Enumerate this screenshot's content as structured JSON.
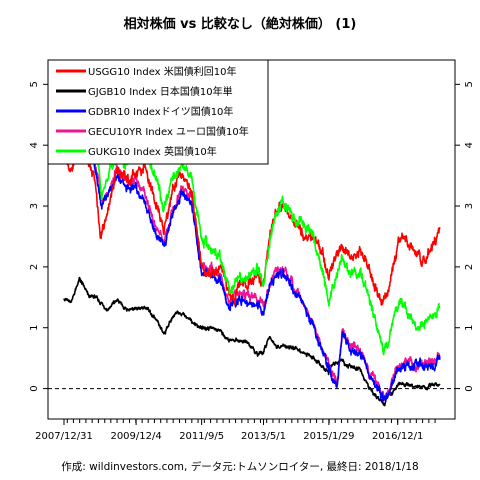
{
  "chart_data": {
    "type": "line",
    "title": "相対株価 vs 比較なし（絶対株価） (1)",
    "footer": "作成: wildinvestors.com, データ元:トムソンロイター, 最終日: 2018/1/18",
    "ylim": [
      -0.5,
      5.4
    ],
    "y_ticks": [
      0,
      1,
      2,
      3,
      4,
      5
    ],
    "y_tick_labels": [
      "0",
      "1",
      "2",
      "3",
      "4",
      "5"
    ],
    "x_tick_labels": [
      "2007/12/31",
      "2009/12/4",
      "2011/9/5",
      "2013/5/1",
      "2015/1/29",
      "2016/12/1"
    ],
    "x_tick_dates": [
      "2007-12-31",
      "2009-12-04",
      "2011-09-05",
      "2013-05-01",
      "2015-01-29",
      "2016-12-01"
    ],
    "x_start": "2007-12-31",
    "x_end": "2018-01-18",
    "reference_line": 0,
    "grid": false,
    "legend_position": "top-left",
    "series": [
      {
        "name": "USGG10 Index 米国債利回10年",
        "color": "#ff0000",
        "x": [
          "2007-12-31",
          "2008-03-01",
          "2008-06-01",
          "2008-09-01",
          "2008-11-01",
          "2008-12-20",
          "2009-03-01",
          "2009-06-01",
          "2009-09-01",
          "2009-12-01",
          "2010-03-01",
          "2010-06-01",
          "2010-09-01",
          "2010-12-01",
          "2011-03-01",
          "2011-06-01",
          "2011-09-01",
          "2011-12-01",
          "2012-03-01",
          "2012-06-01",
          "2012-07-25",
          "2012-09-01",
          "2012-12-01",
          "2013-03-01",
          "2013-05-01",
          "2013-07-01",
          "2013-09-01",
          "2013-12-01",
          "2014-03-01",
          "2014-06-01",
          "2014-09-01",
          "2014-12-01",
          "2015-01-29",
          "2015-03-01",
          "2015-06-01",
          "2015-09-01",
          "2015-12-01",
          "2016-03-01",
          "2016-07-08",
          "2016-09-01",
          "2016-11-15",
          "2016-12-15",
          "2017-03-01",
          "2017-06-01",
          "2017-09-01",
          "2017-12-01",
          "2018-01-18"
        ],
        "values": [
          4.0,
          3.5,
          4.0,
          3.7,
          3.4,
          2.4,
          3.0,
          3.6,
          3.4,
          3.5,
          3.7,
          3.1,
          2.6,
          3.3,
          3.5,
          3.2,
          2.0,
          1.9,
          2.0,
          1.6,
          1.45,
          1.7,
          1.7,
          1.9,
          1.7,
          2.5,
          2.9,
          2.95,
          2.7,
          2.55,
          2.5,
          2.2,
          1.8,
          2.0,
          2.35,
          2.2,
          2.25,
          1.9,
          1.45,
          1.6,
          2.2,
          2.5,
          2.45,
          2.2,
          2.1,
          2.4,
          2.6
        ]
      },
      {
        "name": "GJGB10 Index 日本国債10年単",
        "color": "#000000",
        "x": [
          "2007-12-31",
          "2008-03-01",
          "2008-06-01",
          "2008-09-01",
          "2008-11-01",
          "2009-03-01",
          "2009-06-01",
          "2009-09-01",
          "2009-12-01",
          "2010-03-01",
          "2010-06-01",
          "2010-09-01",
          "2010-12-01",
          "2011-03-01",
          "2011-06-01",
          "2011-09-01",
          "2011-12-01",
          "2012-03-01",
          "2012-06-01",
          "2012-09-01",
          "2012-12-01",
          "2013-03-01",
          "2013-05-01",
          "2013-07-01",
          "2013-09-01",
          "2013-12-01",
          "2014-03-01",
          "2014-06-01",
          "2014-09-01",
          "2014-12-01",
          "2015-01-29",
          "2015-03-01",
          "2015-06-01",
          "2015-09-01",
          "2015-12-01",
          "2016-03-01",
          "2016-07-27",
          "2016-09-01",
          "2016-11-15",
          "2016-12-15",
          "2017-03-01",
          "2017-06-01",
          "2017-09-01",
          "2017-12-01",
          "2018-01-18"
        ],
        "values": [
          1.5,
          1.4,
          1.8,
          1.5,
          1.5,
          1.3,
          1.45,
          1.3,
          1.3,
          1.35,
          1.15,
          0.9,
          1.2,
          1.25,
          1.1,
          1.0,
          1.0,
          0.95,
          0.8,
          0.8,
          0.75,
          0.55,
          0.6,
          0.85,
          0.7,
          0.7,
          0.65,
          0.6,
          0.5,
          0.35,
          0.25,
          0.4,
          0.45,
          0.35,
          0.3,
          0.0,
          -0.28,
          -0.1,
          0.0,
          0.07,
          0.07,
          0.05,
          0.02,
          0.05,
          0.08
        ]
      },
      {
        "name": "GDBR10 Indexドイツ国債10年",
        "color": "#0000ff",
        "x": [
          "2007-12-31",
          "2008-03-01",
          "2008-06-01",
          "2008-09-01",
          "2008-11-01",
          "2009-01-01",
          "2009-03-01",
          "2009-06-01",
          "2009-09-01",
          "2009-12-01",
          "2010-03-01",
          "2010-06-01",
          "2010-09-01",
          "2010-12-01",
          "2011-03-01",
          "2011-06-01",
          "2011-09-01",
          "2011-12-01",
          "2012-03-01",
          "2012-06-01",
          "2012-09-01",
          "2012-12-01",
          "2013-03-01",
          "2013-05-01",
          "2013-07-01",
          "2013-09-01",
          "2013-12-01",
          "2014-03-01",
          "2014-06-01",
          "2014-09-01",
          "2014-12-01",
          "2015-01-29",
          "2015-04-20",
          "2015-06-10",
          "2015-09-01",
          "2015-12-01",
          "2016-03-01",
          "2016-07-08",
          "2016-09-01",
          "2016-11-15",
          "2016-12-15",
          "2017-03-01",
          "2017-06-01",
          "2017-09-01",
          "2017-12-01",
          "2018-01-18"
        ],
        "values": [
          4.3,
          4.0,
          4.6,
          4.1,
          3.6,
          3.0,
          3.1,
          3.5,
          3.3,
          3.3,
          3.1,
          2.6,
          2.3,
          2.9,
          3.2,
          3.0,
          1.9,
          1.9,
          1.8,
          1.3,
          1.5,
          1.4,
          1.4,
          1.25,
          1.7,
          1.9,
          1.9,
          1.6,
          1.35,
          0.95,
          0.6,
          0.35,
          0.08,
          0.9,
          0.65,
          0.6,
          0.2,
          -0.15,
          -0.1,
          0.25,
          0.3,
          0.4,
          0.35,
          0.4,
          0.4,
          0.55
        ]
      },
      {
        "name": "GECU10YR Index ユーロ国債10年",
        "color": "#ee1493",
        "x": [
          "2007-12-31",
          "2008-03-01",
          "2008-06-01",
          "2008-09-01",
          "2008-11-01",
          "2009-01-01",
          "2009-03-01",
          "2009-06-01",
          "2009-09-01",
          "2009-12-01",
          "2010-03-01",
          "2010-06-01",
          "2010-09-01",
          "2010-12-01",
          "2011-03-01",
          "2011-06-01",
          "2011-09-01",
          "2011-12-01",
          "2012-03-01",
          "2012-06-01",
          "2012-09-01",
          "2012-12-01",
          "2013-03-01",
          "2013-05-01",
          "2013-07-01",
          "2013-09-01",
          "2013-12-01",
          "2014-03-01",
          "2014-06-01",
          "2014-09-01",
          "2014-12-01",
          "2015-01-29",
          "2015-04-20",
          "2015-06-10",
          "2015-09-01",
          "2015-12-01",
          "2016-03-01",
          "2016-07-08",
          "2016-09-01",
          "2016-11-15",
          "2016-12-15",
          "2017-03-01",
          "2017-06-01",
          "2017-09-01",
          "2017-12-01",
          "2018-01-18"
        ],
        "values": [
          4.4,
          4.1,
          4.7,
          4.2,
          3.7,
          3.1,
          3.2,
          3.6,
          3.4,
          3.4,
          3.2,
          2.7,
          2.4,
          3.0,
          3.3,
          3.1,
          2.0,
          2.0,
          1.9,
          1.4,
          1.6,
          1.5,
          1.5,
          1.3,
          1.75,
          1.95,
          1.95,
          1.65,
          1.4,
          1.0,
          0.65,
          0.4,
          0.1,
          0.95,
          0.7,
          0.65,
          0.25,
          -0.1,
          -0.05,
          0.3,
          0.35,
          0.45,
          0.4,
          0.45,
          0.45,
          0.6
        ]
      },
      {
        "name": "GUKG10 Index 英国債10年",
        "color": "#00ff00",
        "x": [
          "2007-12-31",
          "2008-03-01",
          "2008-06-01",
          "2008-09-01",
          "2008-11-01",
          "2009-01-01",
          "2009-03-01",
          "2009-06-01",
          "2009-09-01",
          "2009-12-01",
          "2010-03-01",
          "2010-06-01",
          "2010-09-01",
          "2010-12-01",
          "2011-03-01",
          "2011-06-01",
          "2011-09-01",
          "2011-12-01",
          "2012-03-01",
          "2012-06-01",
          "2012-09-01",
          "2012-12-01",
          "2013-03-01",
          "2013-05-01",
          "2013-07-01",
          "2013-09-01",
          "2013-12-01",
          "2014-03-01",
          "2014-06-01",
          "2014-09-01",
          "2014-12-01",
          "2015-01-29",
          "2015-06-10",
          "2015-09-01",
          "2015-12-01",
          "2016-03-01",
          "2016-07-12",
          "2016-09-01",
          "2016-11-15",
          "2016-12-15",
          "2017-03-01",
          "2017-06-01",
          "2017-09-01",
          "2017-12-01",
          "2018-01-18"
        ],
        "values": [
          4.6,
          4.5,
          5.1,
          4.6,
          4.2,
          3.2,
          3.5,
          3.8,
          3.7,
          3.9,
          4.0,
          3.5,
          3.0,
          3.5,
          3.7,
          3.4,
          2.5,
          2.3,
          2.2,
          1.6,
          1.8,
          1.8,
          2.0,
          1.7,
          2.4,
          2.9,
          3.0,
          2.8,
          2.7,
          2.45,
          1.9,
          1.45,
          2.1,
          1.85,
          1.95,
          1.45,
          0.65,
          0.8,
          1.3,
          1.5,
          1.2,
          1.0,
          1.1,
          1.25,
          1.35
        ]
      }
    ]
  }
}
